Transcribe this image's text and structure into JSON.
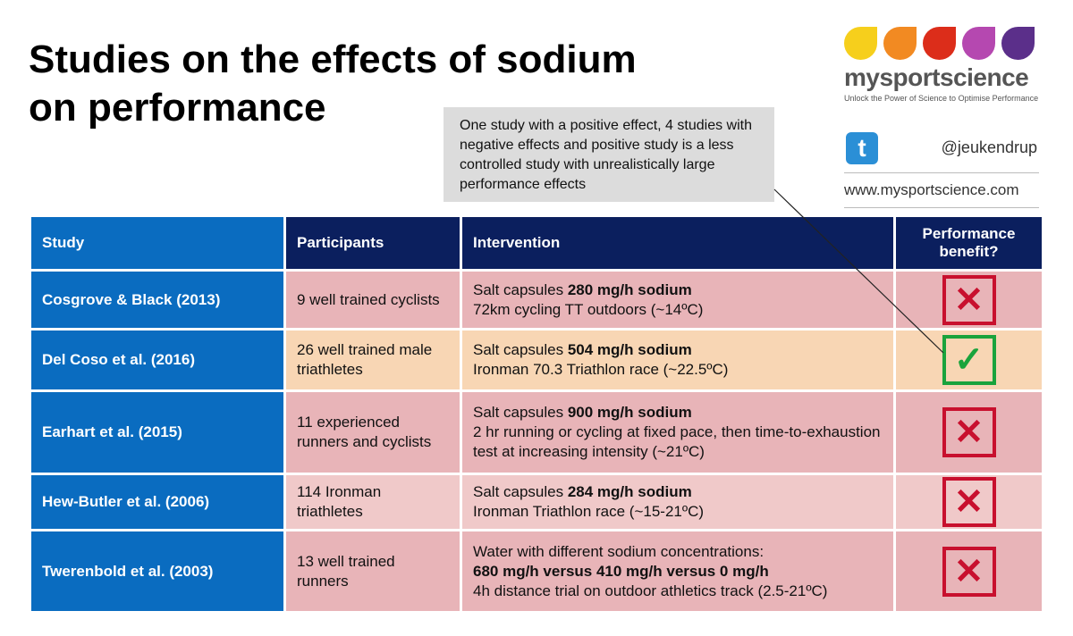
{
  "title": [
    "Studies on the effects of sodium",
    "on performance"
  ],
  "logo": {
    "brand": "mysportscience",
    "tagline": "Unlock the Power of Science to Optimise Performance",
    "drop_colors": [
      "#f6cf1c",
      "#f28a22",
      "#dc2d1a",
      "#b548b0",
      "#5b2f8a"
    ]
  },
  "social": {
    "handle": "@jeukendrup",
    "website": "www.mysportscience.com",
    "icon": "twitter-icon"
  },
  "note": "One study with a positive effect, 4 studies with negative effects and positive study is a less controlled study with  unrealistically large performance effects",
  "table": {
    "headers": [
      "Study",
      "Participants",
      "Intervention",
      "Performance benefit?"
    ],
    "rows": [
      {
        "study": "Cosgrove & Black (2013)",
        "participants": "9 well trained cyclists",
        "intervention": [
          {
            "t": "Salt capsules  "
          },
          {
            "b": "280 mg/h sodium"
          },
          {
            "br": 1
          },
          {
            "t": "72km cycling TT outdoors (~14ºC)"
          }
        ],
        "benefit": false
      },
      {
        "study": "Del Coso et al. (2016)",
        "participants": "26 well trained male triathletes",
        "intervention": [
          {
            "t": "Salt capsules "
          },
          {
            "b": "504 mg/h sodium"
          },
          {
            "br": 1
          },
          {
            "t": "Ironman 70.3 Triathlon race (~22.5ºC)"
          }
        ],
        "benefit": true
      },
      {
        "study": "Earhart et al. (2015)",
        "participants": "11 experienced runners and cyclists",
        "intervention": [
          {
            "t": "Salt capsules "
          },
          {
            "b": "900 mg/h sodium"
          },
          {
            "br": 1
          },
          {
            "t": "2 hr running or cycling at fixed pace, then time-to-exhaustion test at increasing intensity (~21ºC)"
          }
        ],
        "benefit": false
      },
      {
        "study": "Hew-Butler et al. (2006)",
        "participants": "114 Ironman triathletes",
        "intervention": [
          {
            "t": "Salt capsules "
          },
          {
            "b": "284 mg/h sodium"
          },
          {
            "br": 1
          },
          {
            "t": "Ironman Triathlon race (~15-21ºC)"
          }
        ],
        "benefit": false
      },
      {
        "study": "Twerenbold et al. (2003)",
        "participants": "13 well trained runners",
        "intervention": [
          {
            "t": "Water with different sodium concentrations:"
          },
          {
            "br": 1
          },
          {
            "b": "680 mg/h versus 410 mg/h versus 0 mg/h"
          },
          {
            "br": 1
          },
          {
            "t": "4h distance trial on outdoor athletics track (2.5-21ºC)"
          }
        ],
        "benefit": false
      }
    ]
  },
  "marks": {
    "yes": "✓",
    "no": "✕"
  }
}
